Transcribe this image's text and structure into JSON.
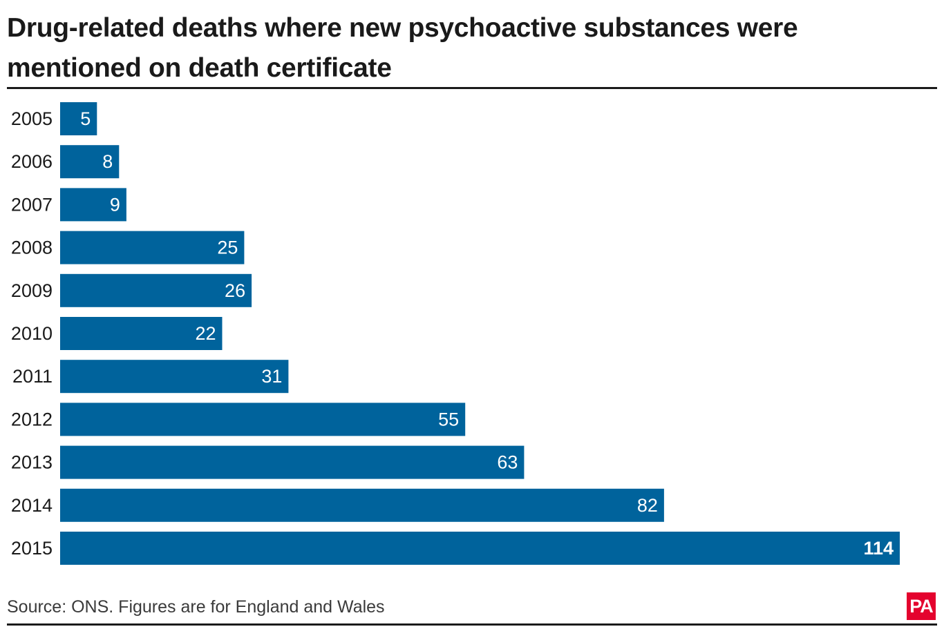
{
  "chart_data": {
    "type": "bar",
    "orientation": "horizontal",
    "title": "Drug-related deaths where new psychoactive substances were mentioned on death certificate",
    "categories": [
      "2005",
      "2006",
      "2007",
      "2008",
      "2009",
      "2010",
      "2011",
      "2012",
      "2013",
      "2014",
      "2015"
    ],
    "values": [
      5,
      8,
      9,
      25,
      26,
      22,
      31,
      55,
      63,
      82,
      114
    ],
    "xlabel": "",
    "ylabel": "",
    "xlim": [
      0,
      114
    ],
    "grid": false,
    "legend": "none",
    "data_labels": "inside-end",
    "bar_color": "#00639c",
    "label_color": "#ffffff"
  },
  "footer": {
    "source": "Source: ONS. Figures are for England and Wales",
    "logo_text": "PA",
    "logo_color": "#e4032e"
  }
}
